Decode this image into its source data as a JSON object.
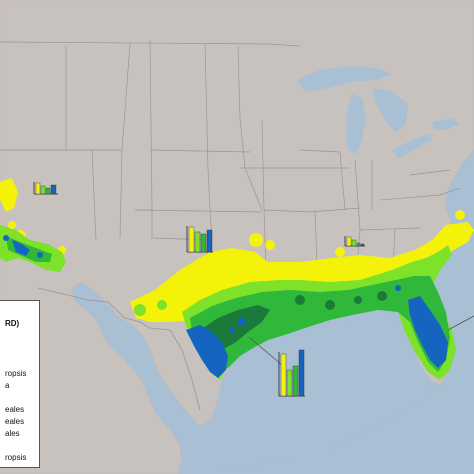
{
  "legend": {
    "title": "RD)",
    "entries": [
      "ropsis",
      "a",
      "eales",
      "eales",
      "ales",
      "ropsis"
    ]
  },
  "colors": {
    "ocean": "#a9bfd3",
    "land": "#c9c3c0",
    "yellow": "#f5f20a",
    "light_green": "#7ee12a",
    "green": "#2fb83a",
    "dark_green": "#1b7a3a",
    "blue": "#1565c0"
  }
}
